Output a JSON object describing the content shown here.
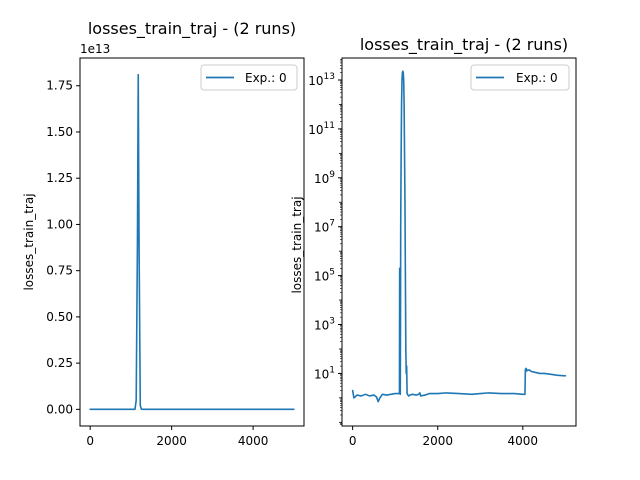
{
  "chart_data": [
    {
      "type": "line",
      "title": "losses_train_traj - (2 runs)",
      "xlabel": "",
      "ylabel": "losses_train_traj",
      "offset_text": "1e13",
      "xlim": [
        -250,
        5250
      ],
      "ylim": [
        -900000000000.0,
        19000000000000.0
      ],
      "xscale": "linear",
      "yscale": "linear",
      "xticks": [
        0,
        2000,
        4000
      ],
      "xtick_labels": [
        "0",
        "2000",
        "4000"
      ],
      "yticks": [
        0,
        2500000000000.0,
        5000000000000.0,
        7500000000000.0,
        10000000000000.0,
        12500000000000.0,
        15000000000000.0,
        17500000000000.0
      ],
      "ytick_labels": [
        "0.00",
        "0.25",
        "0.50",
        "0.75",
        "1.00",
        "1.25",
        "1.50",
        "1.75"
      ],
      "grid": false,
      "legend_position": "top-right",
      "series": [
        {
          "name": "Exp.: 0",
          "color": "#1f77b4",
          "x": [
            0,
            1100,
            1130,
            1160,
            1180,
            1200,
            1230,
            1260,
            1300,
            5000
          ],
          "y": [
            1.2,
            1.3,
            500000000000.0,
            9000000000000.0,
            18100000000000.0,
            9000000000000.0,
            200000000000.0,
            2,
            1.3,
            8
          ]
        }
      ]
    },
    {
      "type": "line",
      "title": "losses_train_traj - (2 runs)",
      "xlabel": "",
      "ylabel": "losses_train_traj",
      "xlim": [
        -250,
        5250
      ],
      "ylim_log10": [
        -1.15,
        13.9
      ],
      "xscale": "linear",
      "yscale": "log",
      "xticks": [
        0,
        2000,
        4000
      ],
      "xtick_labels": [
        "0",
        "2000",
        "4000"
      ],
      "ytick_exponents": [
        1,
        3,
        5,
        7,
        9,
        11,
        13
      ],
      "ytick_base": "10",
      "grid": false,
      "legend_position": "top-right",
      "series": [
        {
          "name": "Exp.: 0",
          "color": "#1f77b4",
          "x": [
            0,
            30,
            60,
            100,
            200,
            300,
            400,
            500,
            560,
            600,
            640,
            700,
            800,
            900,
            1000,
            1080,
            1100,
            1105,
            1110,
            1115,
            1120,
            1125,
            1130,
            1140,
            1150,
            1160,
            1170,
            1180,
            1190,
            1200,
            1210,
            1220,
            1230,
            1240,
            1250,
            1260,
            1270,
            1280,
            1300,
            1320,
            1350,
            1400,
            1500,
            1550,
            1580,
            1600,
            1700,
            1800,
            2000,
            2200,
            2500,
            2800,
            3000,
            3200,
            3500,
            3800,
            4000,
            4050,
            4060,
            4070,
            4080,
            4100,
            4150,
            4200,
            4300,
            4400,
            4500,
            4600,
            4700,
            4800,
            4900,
            5000
          ],
          "y": [
            2,
            1.0,
            1.1,
            1.3,
            1.2,
            1.4,
            1.2,
            1.3,
            1.1,
            0.7,
            1.0,
            1.4,
            1.3,
            1.4,
            1.5,
            1.5,
            1.6,
            200000,
            1.5,
            1.6,
            1.4,
            1000,
            10000000.0,
            10000000000.0,
            1000000000000.0,
            10000000000000.0,
            20000000000000.0,
            23000000000000.0,
            20000000000000.0,
            10000000000000.0,
            1000000000000.0,
            10000000000.0,
            100000000.0,
            100000.0,
            100,
            10,
            20,
            1.5,
            1.3,
            1.2,
            1.3,
            1.4,
            1.3,
            1.4,
            1.6,
            1.2,
            1.3,
            1.5,
            1.5,
            1.6,
            1.5,
            1.4,
            1.5,
            1.6,
            1.5,
            1.5,
            1.4,
            1.4,
            15,
            12,
            16,
            13,
            14,
            12,
            11,
            10,
            10,
            9.5,
            9,
            8.5,
            8.2,
            8
          ]
        }
      ]
    }
  ]
}
